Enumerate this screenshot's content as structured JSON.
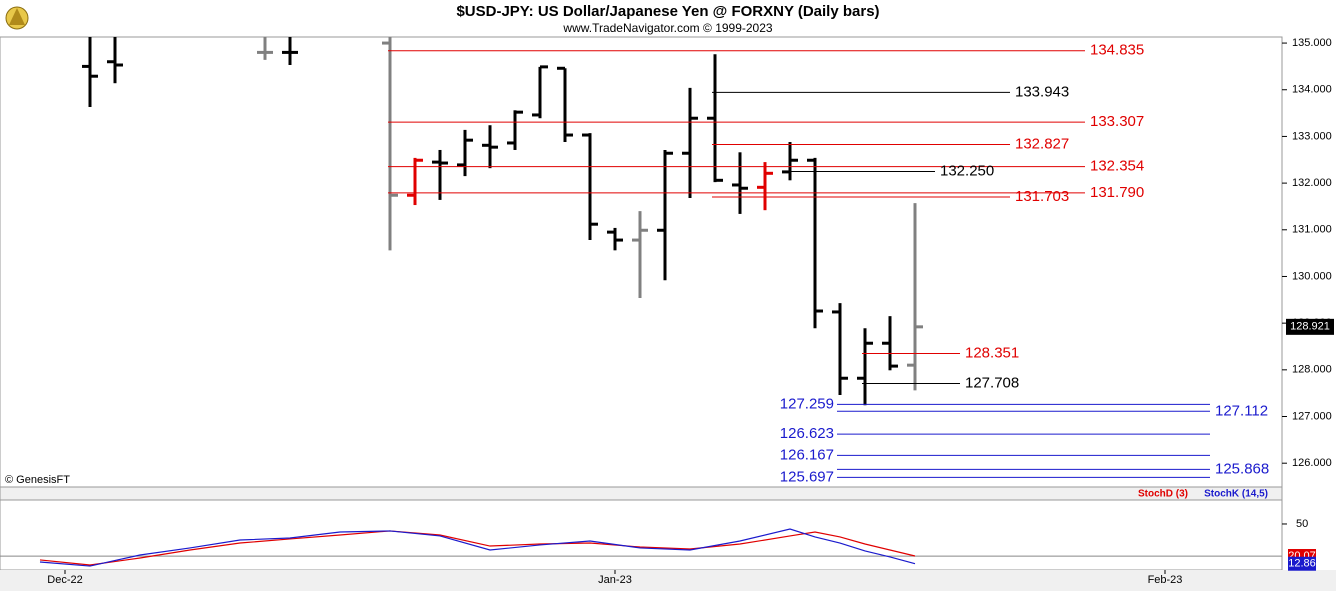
{
  "chart_data": [
    {
      "type": "ohlc",
      "title": "$USD-JPY:  US Dollar/Japanese Yen @ FORXNY  (Daily bars)",
      "subtitle": "www.TradeNavigator.com © 1999-2023",
      "credit": "© GenesisFT",
      "x": [
        1,
        2,
        8,
        9,
        13,
        14,
        15,
        16,
        17,
        18,
        19,
        20,
        21,
        22,
        23,
        24,
        25,
        26,
        27,
        28,
        29,
        30,
        31,
        32,
        33,
        34
      ],
      "open": [
        134.5,
        134.6,
        134.8,
        134.8,
        135.0,
        131.74,
        132.45,
        132.39,
        132.81,
        132.86,
        133.46,
        134.46,
        133.03,
        130.95,
        130.78,
        130.99,
        132.64,
        133.39,
        131.96,
        131.91,
        132.24,
        132.49,
        129.24,
        127.82,
        128.57,
        128.1
      ],
      "high": [
        135.2,
        135.2,
        135.2,
        135.2,
        135.13,
        132.54,
        132.71,
        133.14,
        133.24,
        133.56,
        134.49,
        134.46,
        133.07,
        131.04,
        131.4,
        132.71,
        134.04,
        134.76,
        132.66,
        132.45,
        132.88,
        132.54,
        129.43,
        128.89,
        129.15,
        131.57
      ],
      "low": [
        133.63,
        134.14,
        134.64,
        134.53,
        130.56,
        131.53,
        131.64,
        132.15,
        132.32,
        132.71,
        133.39,
        132.88,
        130.78,
        130.56,
        129.54,
        129.92,
        131.68,
        132.02,
        131.34,
        131.42,
        132.06,
        128.89,
        127.46,
        127.24,
        127.99,
        127.56
      ],
      "close": [
        134.29,
        134.53,
        134.8,
        134.8,
        131.74,
        132.49,
        132.43,
        132.92,
        132.77,
        133.52,
        134.49,
        133.03,
        131.12,
        130.78,
        130.99,
        132.64,
        133.39,
        132.06,
        131.89,
        132.21,
        132.49,
        129.26,
        127.82,
        128.57,
        128.08,
        128.921
      ],
      "colors": [
        "#000000",
        "#000000",
        "#808080",
        "#000000",
        "#808080",
        "#e00000",
        "#000000",
        "#000000",
        "#000000",
        "#000000",
        "#000000",
        "#000000",
        "#000000",
        "#000000",
        "#808080",
        "#000000",
        "#000000",
        "#000000",
        "#000000",
        "#e00000",
        "#000000",
        "#000000",
        "#000000",
        "#000000",
        "#000000",
        "#808080"
      ],
      "levels": [
        {
          "value": 134.835,
          "color": "#e00000"
        },
        {
          "value": 133.943,
          "color": "#000000"
        },
        {
          "value": 133.307,
          "color": "#e00000"
        },
        {
          "value": 132.827,
          "color": "#e00000"
        },
        {
          "value": 132.354,
          "color": "#e00000"
        },
        {
          "value": 132.25,
          "label": "132.250",
          "color": "#000000"
        },
        {
          "value": 131.79,
          "label": "131.790",
          "color": "#e00000"
        },
        {
          "value": 131.703,
          "color": "#e00000"
        },
        {
          "value": 128.351,
          "color": "#e00000"
        },
        {
          "value": 127.708,
          "color": "#000000"
        },
        {
          "value": 127.259,
          "color": "#1a1acd"
        },
        {
          "value": 127.112,
          "color": "#1a1acd"
        },
        {
          "value": 126.623,
          "color": "#1a1acd"
        },
        {
          "value": 126.167,
          "color": "#1a1acd"
        },
        {
          "value": 125.868,
          "color": "#1a1acd"
        },
        {
          "value": 125.697,
          "color": "#1a1acd"
        }
      ],
      "xlim": [
        -2.6,
        48.68
      ],
      "xticks": [
        {
          "value": 0,
          "label": "Dec-22"
        },
        {
          "value": 22,
          "label": "Jan-23"
        },
        {
          "value": 44,
          "label": "Feb-23"
        }
      ],
      "ylim": [
        125.49,
        135.13
      ],
      "yticks": [
        {
          "value": 126,
          "label": "126.000"
        },
        {
          "value": 127,
          "label": "127.000"
        },
        {
          "value": 128,
          "label": "128.000"
        },
        {
          "value": 129,
          "label": "129.000"
        },
        {
          "value": 130,
          "label": "130.000"
        },
        {
          "value": 131,
          "label": "131.000"
        },
        {
          "value": 132,
          "label": "132.000"
        },
        {
          "value": 133,
          "label": "133.000"
        },
        {
          "value": 134,
          "label": "134.000"
        },
        {
          "value": 135,
          "label": "135.000"
        }
      ]
    },
    {
      "type": "line",
      "x": [
        -1,
        1,
        3,
        5,
        7,
        9,
        11,
        13,
        15,
        17,
        19,
        21,
        23,
        25,
        27,
        29,
        30,
        31,
        32,
        33,
        34
      ],
      "series": [
        {
          "name": "StochD (3)",
          "color": "#e00000",
          "values": [
            16.4,
            11.7,
            18.2,
            25.7,
            32.2,
            36.0,
            39.7,
            43.5,
            39.7,
            29.4,
            31.3,
            32.2,
            28.5,
            26.6,
            31.3,
            38.8,
            42.5,
            37.9,
            31.3,
            25.7,
            20.07
          ]
        },
        {
          "name": "StochK (14,5)",
          "color": "#1a1acd",
          "values": [
            14.5,
            10.7,
            21.0,
            27.6,
            35.0,
            36.9,
            42.5,
            43.5,
            38.8,
            25.7,
            30.4,
            34.1,
            27.6,
            25.7,
            34.1,
            45.3,
            37.9,
            32.2,
            24.8,
            19.2,
            12.86
          ]
        }
      ],
      "reference_lines": [
        20
      ],
      "xlim": [
        -2.6,
        48.68
      ],
      "ylim": [
        7,
        72.4
      ],
      "yticks": [
        50
      ]
    }
  ]
}
